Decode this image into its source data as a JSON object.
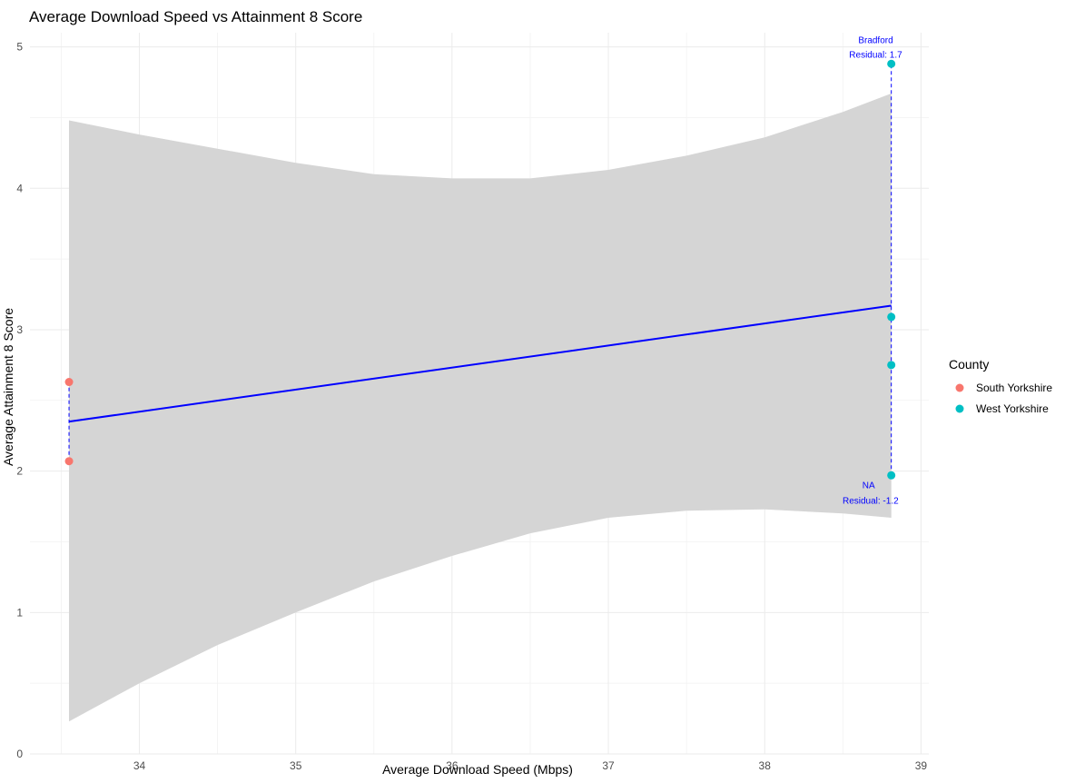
{
  "chart_data": {
    "type": "scatter",
    "title": "Average Download Speed vs Attainment 8 Score",
    "xlabel": "Average Download Speed (Mbps)",
    "ylabel": "Average Attainment 8 Score",
    "xlim": [
      33.3,
      39.05
    ],
    "ylim": [
      0,
      5.1
    ],
    "x_ticks": [
      34,
      35,
      36,
      37,
      38,
      39
    ],
    "y_ticks": [
      0,
      1,
      2,
      3,
      4,
      5
    ],
    "grid": true,
    "legend": {
      "title": "County",
      "position": "right",
      "entries": [
        {
          "name": "South Yorkshire",
          "color": "#f8766d"
        },
        {
          "name": "West Yorkshire",
          "color": "#00bfc4"
        }
      ]
    },
    "series": [
      {
        "name": "South Yorkshire",
        "color": "#f8766d",
        "points": [
          {
            "x": 33.55,
            "y": 2.63
          },
          {
            "x": 33.55,
            "y": 2.07
          }
        ]
      },
      {
        "name": "West Yorkshire",
        "color": "#00bfc4",
        "points": [
          {
            "x": 38.81,
            "y": 4.88
          },
          {
            "x": 38.81,
            "y": 3.09
          },
          {
            "x": 38.81,
            "y": 2.75
          },
          {
            "x": 38.81,
            "y": 1.97
          }
        ]
      }
    ],
    "regression": {
      "color": "#0000ff",
      "start": {
        "x": 33.55,
        "y": 2.35
      },
      "end": {
        "x": 38.81,
        "y": 3.17
      },
      "band_color": "#d5d5d5",
      "band_upper": [
        [
          33.55,
          4.48
        ],
        [
          34.0,
          4.38
        ],
        [
          34.5,
          4.28
        ],
        [
          35.0,
          4.18
        ],
        [
          35.5,
          4.1
        ],
        [
          36.0,
          4.07
        ],
        [
          36.5,
          4.07
        ],
        [
          37.0,
          4.13
        ],
        [
          37.5,
          4.23
        ],
        [
          38.0,
          4.36
        ],
        [
          38.5,
          4.54
        ],
        [
          38.81,
          4.67
        ]
      ],
      "band_lower": [
        [
          33.55,
          0.23
        ],
        [
          34.0,
          0.5
        ],
        [
          34.5,
          0.77
        ],
        [
          35.0,
          1.0
        ],
        [
          35.5,
          1.22
        ],
        [
          36.0,
          1.4
        ],
        [
          36.5,
          1.56
        ],
        [
          37.0,
          1.67
        ],
        [
          37.5,
          1.72
        ],
        [
          38.0,
          1.73
        ],
        [
          38.5,
          1.7
        ],
        [
          38.81,
          1.67
        ]
      ]
    },
    "residual_lines": [
      {
        "x": 33.55,
        "y1": 2.07,
        "y2": 2.63
      },
      {
        "x": 38.81,
        "y1": 1.97,
        "y2": 4.88
      }
    ],
    "annotations": [
      {
        "name": "Bradford",
        "residual": "Residual: 1.7",
        "x": 38.81,
        "y": 4.88,
        "position": "above-left"
      },
      {
        "name": "NA",
        "residual": "Residual: -1.2",
        "x": 38.81,
        "y": 1.97,
        "position": "below-left"
      }
    ]
  }
}
